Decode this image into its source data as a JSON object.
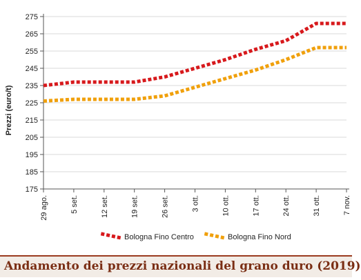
{
  "chart_data": {
    "type": "line",
    "title": "Andamento dei prezzi nazionali del grano duro (2019)",
    "ylabel": "Prezzi (euro/t)",
    "xlabel": "",
    "categories": [
      "29 ago.",
      "5 set.",
      "12 set.",
      "19 set.",
      "26 set.",
      "3 ott.",
      "10 ott.",
      "17 ott.",
      "24 ott.",
      "31 ott.",
      "7 nov."
    ],
    "yticks": [
      175,
      185,
      195,
      205,
      215,
      225,
      235,
      245,
      255,
      265,
      275
    ],
    "ylim": [
      175,
      275
    ],
    "grid": "horizontal",
    "legend_position": "bottom",
    "series": [
      {
        "name": "Bologna Fino Centro",
        "color": "#d7191c",
        "values": [
          235,
          237,
          237,
          237,
          240,
          245,
          250,
          256,
          261,
          271,
          271
        ]
      },
      {
        "name": "Bologna Fino Nord",
        "color": "#f0a00c",
        "values": [
          226,
          227,
          227,
          227,
          229,
          234,
          239,
          244,
          250,
          257,
          257
        ]
      }
    ]
  }
}
